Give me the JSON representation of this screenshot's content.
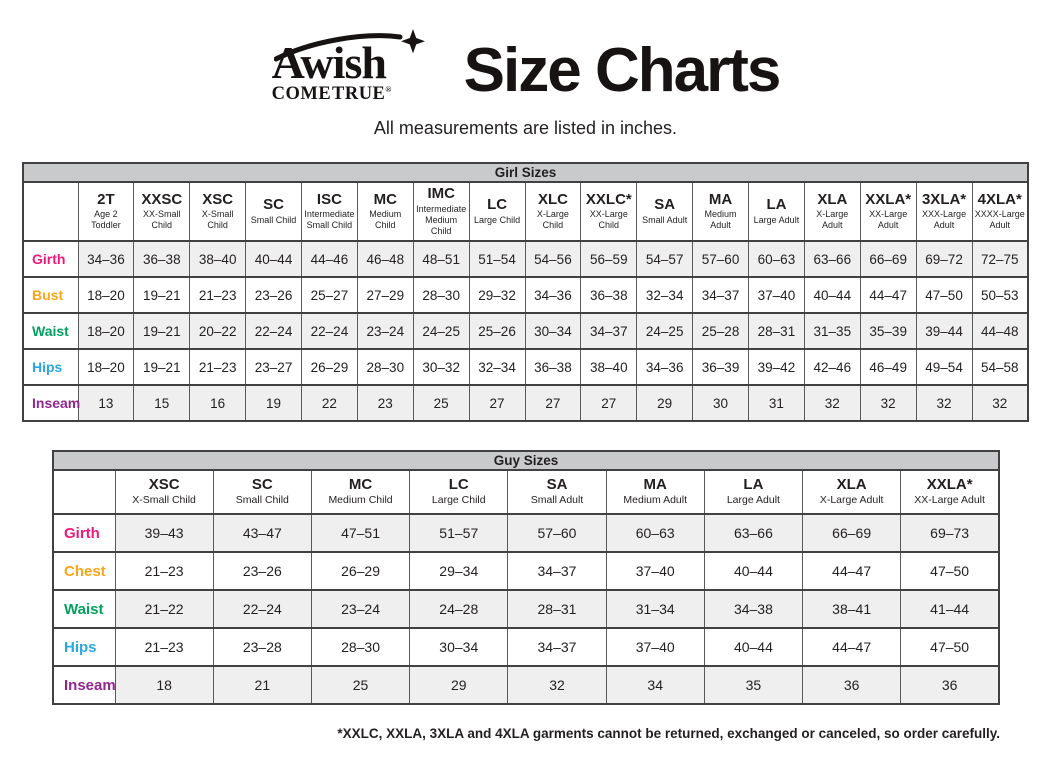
{
  "brand": {
    "name": "Awish",
    "tagline": "COME TRUE",
    "registered": "®"
  },
  "title": "Size Charts",
  "subtitle": "All measurements are listed in inches.",
  "footnote": "*XXLC, XXLA, 3XLA and 4XLA garments cannot be returned, exchanged or canceled, so order carefully.",
  "colors": {
    "girth": "#ED1A7B",
    "bust": "#F9A61A",
    "chest": "#F9A61A",
    "waist": "#00A15D",
    "hips": "#29A8E0",
    "inseam": "#90278E",
    "table_title_bg": "#C9CACC",
    "row_stripe": "#EFEFEF",
    "border_dark": "#414042",
    "border_light": "#58595B",
    "text": "#231F20"
  },
  "tables": [
    {
      "id": "girl",
      "title": "Girl Sizes",
      "label_col_width": 55,
      "columns": [
        {
          "code": "2T",
          "desc": "Age 2 Toddler"
        },
        {
          "code": "XXSC",
          "desc": "XX-Small Child"
        },
        {
          "code": "XSC",
          "desc": "X-Small Child"
        },
        {
          "code": "SC",
          "desc": "Small Child"
        },
        {
          "code": "ISC",
          "desc": "Intermediate Small Child"
        },
        {
          "code": "MC",
          "desc": "Medium Child"
        },
        {
          "code": "IMC",
          "desc": "Intermediate Medium Child"
        },
        {
          "code": "LC",
          "desc": "Large Child"
        },
        {
          "code": "XLC",
          "desc": "X-Large Child"
        },
        {
          "code": "XXLC*",
          "desc": "XX-Large Child"
        },
        {
          "code": "SA",
          "desc": "Small Adult"
        },
        {
          "code": "MA",
          "desc": "Medium Adult"
        },
        {
          "code": "LA",
          "desc": "Large Adult"
        },
        {
          "code": "XLA",
          "desc": "X-Large Adult"
        },
        {
          "code": "XXLA*",
          "desc": "XX-Large Adult"
        },
        {
          "code": "3XLA*",
          "desc": "XXX-Large Adult"
        },
        {
          "code": "4XLA*",
          "desc": "XXXX-Large Adult"
        }
      ],
      "rows": [
        {
          "label": "Girth",
          "color_key": "girth",
          "values": [
            "34–36",
            "36–38",
            "38–40",
            "40–44",
            "44–46",
            "46–48",
            "48–51",
            "51–54",
            "54–56",
            "56–59",
            "54–57",
            "57–60",
            "60–63",
            "63–66",
            "66–69",
            "69–72",
            "72–75"
          ]
        },
        {
          "label": "Bust",
          "color_key": "bust",
          "values": [
            "18–20",
            "19–21",
            "21–23",
            "23–26",
            "25–27",
            "27–29",
            "28–30",
            "29–32",
            "34–36",
            "36–38",
            "32–34",
            "34–37",
            "37–40",
            "40–44",
            "44–47",
            "47–50",
            "50–53"
          ]
        },
        {
          "label": "Waist",
          "color_key": "waist",
          "values": [
            "18–20",
            "19–21",
            "20–22",
            "22–24",
            "22–24",
            "23–24",
            "24–25",
            "25–26",
            "30–34",
            "34–37",
            "24–25",
            "25–28",
            "28–31",
            "31–35",
            "35–39",
            "39–44",
            "44–48"
          ]
        },
        {
          "label": "Hips",
          "color_key": "hips",
          "values": [
            "18–20",
            "19–21",
            "21–23",
            "23–27",
            "26–29",
            "28–30",
            "30–32",
            "32–34",
            "36–38",
            "38–40",
            "34–36",
            "36–39",
            "39–42",
            "42–46",
            "46–49",
            "49–54",
            "54–58"
          ]
        },
        {
          "label": "Inseam",
          "color_key": "inseam",
          "values": [
            "13",
            "15",
            "16",
            "19",
            "22",
            "23",
            "25",
            "27",
            "27",
            "27",
            "29",
            "30",
            "31",
            "32",
            "32",
            "32",
            "32"
          ]
        }
      ]
    },
    {
      "id": "guy",
      "title": "Guy Sizes",
      "label_col_width": 62,
      "columns": [
        {
          "code": "XSC",
          "desc": "X-Small Child"
        },
        {
          "code": "SC",
          "desc": "Small Child"
        },
        {
          "code": "MC",
          "desc": "Medium Child"
        },
        {
          "code": "LC",
          "desc": "Large Child"
        },
        {
          "code": "SA",
          "desc": "Small Adult"
        },
        {
          "code": "MA",
          "desc": "Medium Adult"
        },
        {
          "code": "LA",
          "desc": "Large Adult"
        },
        {
          "code": "XLA",
          "desc": "X-Large Adult"
        },
        {
          "code": "XXLA*",
          "desc": "XX-Large Adult"
        }
      ],
      "rows": [
        {
          "label": "Girth",
          "color_key": "girth",
          "values": [
            "39–43",
            "43–47",
            "47–51",
            "51–57",
            "57–60",
            "60–63",
            "63–66",
            "66–69",
            "69–73"
          ]
        },
        {
          "label": "Chest",
          "color_key": "chest",
          "values": [
            "21–23",
            "23–26",
            "26–29",
            "29–34",
            "34–37",
            "37–40",
            "40–44",
            "44–47",
            "47–50"
          ]
        },
        {
          "label": "Waist",
          "color_key": "waist",
          "values": [
            "21–22",
            "22–24",
            "23–24",
            "24–28",
            "28–31",
            "31–34",
            "34–38",
            "38–41",
            "41–44"
          ]
        },
        {
          "label": "Hips",
          "color_key": "hips",
          "values": [
            "21–23",
            "23–28",
            "28–30",
            "30–34",
            "34–37",
            "37–40",
            "40–44",
            "44–47",
            "47–50"
          ]
        },
        {
          "label": "Inseam",
          "color_key": "inseam",
          "values": [
            "18",
            "21",
            "25",
            "29",
            "32",
            "34",
            "35",
            "36",
            "36"
          ]
        }
      ]
    }
  ]
}
